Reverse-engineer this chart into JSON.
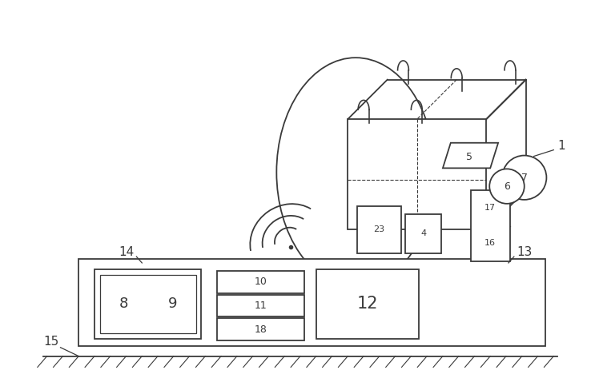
{
  "bg_color": "#ffffff",
  "line_color": "#3a3a3a",
  "line_width": 1.3,
  "fig_width": 7.48,
  "fig_height": 4.83,
  "dpi": 100
}
